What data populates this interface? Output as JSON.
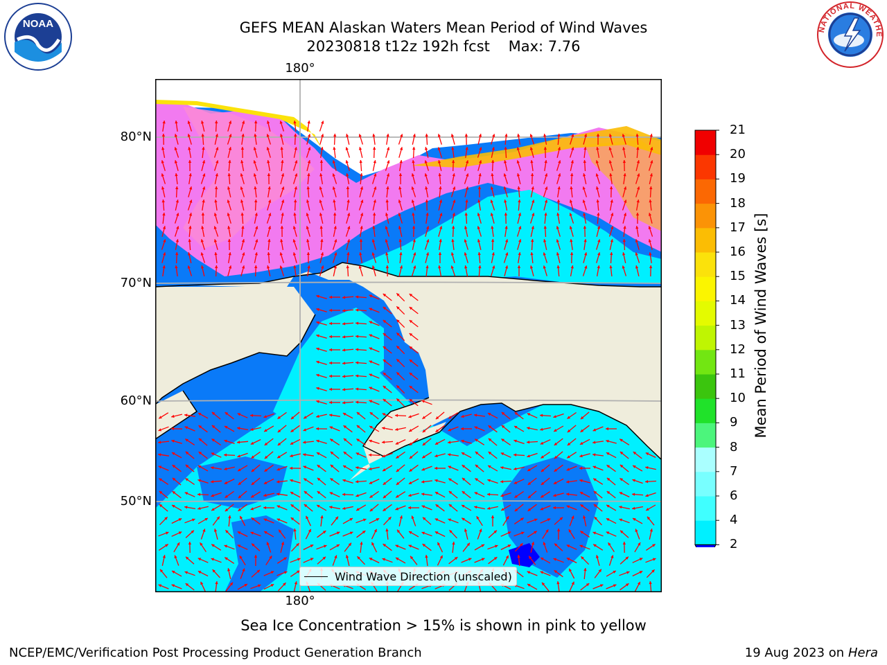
{
  "header": {
    "title_line1": "GEFS MEAN Alaskan Waters Mean Period of Wind Waves",
    "title_run": "20230818 t12z 192h fcst",
    "title_max": "Max: 7.76"
  },
  "logos": {
    "noaa_text": "NOAA",
    "nws_text": "NATIONAL WEATHER SERVICE"
  },
  "map": {
    "lon_label_top": "180°",
    "lon_label_bottom": "180°",
    "lat_labels": [
      "80°N",
      "70°N",
      "60°N",
      "50°N"
    ],
    "legend_label": "Wind Wave Direction (unscaled)",
    "arrow_color": "#ff0000",
    "land_color": "#efeddc"
  },
  "colorbar": {
    "label": "Mean Period of Wind Waves [s]",
    "ticks": [
      "21",
      "20",
      "19",
      "18",
      "17",
      "16",
      "15",
      "14",
      "13",
      "12",
      "11",
      "10",
      "9",
      "8",
      "7",
      "6",
      "4",
      "2"
    ],
    "levels": [
      2,
      4,
      6,
      7,
      8,
      9,
      10,
      11,
      12,
      13,
      14,
      15,
      16,
      17,
      18,
      19,
      20,
      21
    ],
    "colors": [
      "#0a7af8",
      "#00f0ff",
      "#40ffff",
      "#78ffff",
      "#aaffff",
      "#4cf57c",
      "#20e22a",
      "#3bc50e",
      "#72e612",
      "#bff502",
      "#e4fb00",
      "#fbf500",
      "#fbe20b",
      "#fbbd04",
      "#fb9306",
      "#fb6803",
      "#fb3700",
      "#f00000"
    ],
    "under_color": "#0000ff"
  },
  "caption": "Sea Ice Concentration > 15% is shown in pink to yellow",
  "footer": {
    "left": "NCEP/EMC/Verification Post Processing Product Generation Branch",
    "date": "19 Aug 2023 on",
    "host": "Hera"
  }
}
